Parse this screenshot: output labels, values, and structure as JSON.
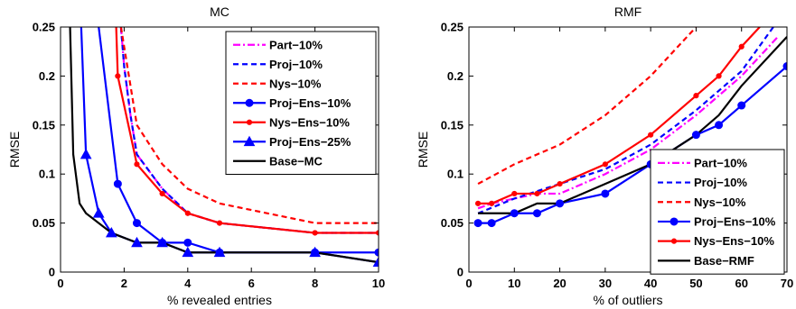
{
  "chart_data": [
    {
      "type": "line",
      "title": "MC",
      "xlabel": "% revealed entries",
      "ylabel": "RMSE",
      "xlim": [
        0,
        10
      ],
      "ylim": [
        0,
        0.25
      ],
      "xticks": [
        0,
        2,
        4,
        6,
        8,
        10
      ],
      "yticks": [
        0,
        0.05,
        0.1,
        0.15,
        0.2,
        0.25
      ],
      "legend_position": "top-right",
      "series": [
        {
          "name": "Part−10%",
          "color": "#ff00ff",
          "style": "dashdot",
          "marker": "none",
          "x": [
            1.9,
            2.0,
            2.2,
            2.4,
            3.2,
            4.0,
            5.0,
            8.0,
            10.0
          ],
          "y": [
            0.25,
            0.21,
            0.16,
            0.12,
            0.085,
            0.06,
            0.05,
            0.04,
            0.04
          ]
        },
        {
          "name": "Proj−10%",
          "color": "#0000ff",
          "style": "dashed",
          "marker": "none",
          "x": [
            1.9,
            2.0,
            2.2,
            2.4,
            3.2,
            4.0,
            5.0,
            8.0,
            10.0
          ],
          "y": [
            0.25,
            0.21,
            0.16,
            0.12,
            0.085,
            0.06,
            0.05,
            0.04,
            0.04
          ]
        },
        {
          "name": "Nys−10%",
          "color": "#ff0000",
          "style": "dashed",
          "marker": "none",
          "x": [
            1.9,
            2.1,
            2.4,
            3.2,
            4.0,
            5.0,
            8.0,
            10.0
          ],
          "y": [
            0.25,
            0.21,
            0.15,
            0.11,
            0.085,
            0.07,
            0.05,
            0.05
          ]
        },
        {
          "name": "Proj−Ens−10%",
          "color": "#0000ff",
          "style": "solid",
          "marker": "circle",
          "x": [
            1.2,
            1.8,
            2.4,
            3.2,
            4.0,
            5.0,
            8.0,
            10.0
          ],
          "y": [
            0.25,
            0.09,
            0.05,
            0.03,
            0.03,
            0.02,
            0.02,
            0.02
          ]
        },
        {
          "name": "Nys−Ens−10%",
          "color": "#ff0000",
          "style": "solid",
          "marker": "dot",
          "x": [
            1.75,
            1.8,
            2.4,
            3.2,
            4.0,
            5.0,
            8.0,
            10.0
          ],
          "y": [
            0.25,
            0.2,
            0.11,
            0.08,
            0.06,
            0.05,
            0.04,
            0.04
          ]
        },
        {
          "name": "Proj−Ens−25%",
          "color": "#0000ff",
          "style": "solid",
          "marker": "triangle",
          "x": [
            0.65,
            0.8,
            1.2,
            1.6,
            2.4,
            3.2,
            4.0,
            5.0,
            8.0,
            10.0
          ],
          "y": [
            0.25,
            0.12,
            0.06,
            0.04,
            0.03,
            0.03,
            0.02,
            0.02,
            0.02,
            0.01
          ]
        },
        {
          "name": "Base−MC",
          "color": "#000000",
          "style": "solid",
          "marker": "none",
          "x": [
            0.3,
            0.4,
            0.6,
            0.8,
            1.0,
            1.2,
            1.6,
            2.4,
            3.2,
            4.0,
            5.0,
            8.0,
            10.0
          ],
          "y": [
            0.25,
            0.12,
            0.07,
            0.06,
            0.055,
            0.05,
            0.04,
            0.03,
            0.03,
            0.02,
            0.02,
            0.02,
            0.01
          ]
        }
      ]
    },
    {
      "type": "line",
      "title": "RMF",
      "xlabel": "% of outliers",
      "ylabel": "RMSE",
      "xlim": [
        0,
        70
      ],
      "ylim": [
        0,
        0.25
      ],
      "xticks": [
        0,
        10,
        20,
        30,
        40,
        50,
        60,
        70
      ],
      "yticks": [
        0,
        0.05,
        0.1,
        0.15,
        0.2,
        0.25
      ],
      "legend_position": "bottom-right",
      "series": [
        {
          "name": "Part−10%",
          "color": "#ff00ff",
          "style": "dashdot",
          "marker": "none",
          "x": [
            2,
            5,
            10,
            15,
            20,
            30,
            40,
            50,
            55,
            60,
            65,
            68
          ],
          "y": [
            0.065,
            0.07,
            0.075,
            0.08,
            0.08,
            0.1,
            0.125,
            0.16,
            0.18,
            0.2,
            0.225,
            0.24
          ]
        },
        {
          "name": "Proj−10%",
          "color": "#0000ff",
          "style": "dashed",
          "marker": "none",
          "x": [
            2,
            10,
            20,
            30,
            40,
            50,
            60,
            67
          ],
          "y": [
            0.06,
            0.075,
            0.09,
            0.105,
            0.13,
            0.165,
            0.205,
            0.25
          ]
        },
        {
          "name": "Nys−10%",
          "color": "#ff0000",
          "style": "dashed",
          "marker": "none",
          "x": [
            2,
            10,
            20,
            30,
            40,
            50
          ],
          "y": [
            0.09,
            0.11,
            0.13,
            0.16,
            0.2,
            0.25
          ]
        },
        {
          "name": "Proj−Ens−10%",
          "color": "#0000ff",
          "style": "solid",
          "marker": "circle",
          "x": [
            2,
            5,
            10,
            15,
            20,
            30,
            40,
            50,
            55,
            60,
            70
          ],
          "y": [
            0.05,
            0.05,
            0.06,
            0.06,
            0.07,
            0.08,
            0.11,
            0.14,
            0.15,
            0.17,
            0.21
          ]
        },
        {
          "name": "Nys−Ens−10%",
          "color": "#ff0000",
          "style": "solid",
          "marker": "dot",
          "x": [
            2,
            5,
            10,
            15,
            20,
            30,
            40,
            50,
            55,
            60,
            64
          ],
          "y": [
            0.07,
            0.07,
            0.08,
            0.08,
            0.09,
            0.11,
            0.14,
            0.18,
            0.2,
            0.23,
            0.25
          ]
        },
        {
          "name": "Base−RMF",
          "color": "#000000",
          "style": "solid",
          "marker": "none",
          "x": [
            2,
            10,
            15,
            20,
            30,
            40,
            50,
            55,
            60,
            70
          ],
          "y": [
            0.06,
            0.06,
            0.07,
            0.07,
            0.09,
            0.11,
            0.14,
            0.16,
            0.19,
            0.24
          ]
        }
      ]
    }
  ]
}
